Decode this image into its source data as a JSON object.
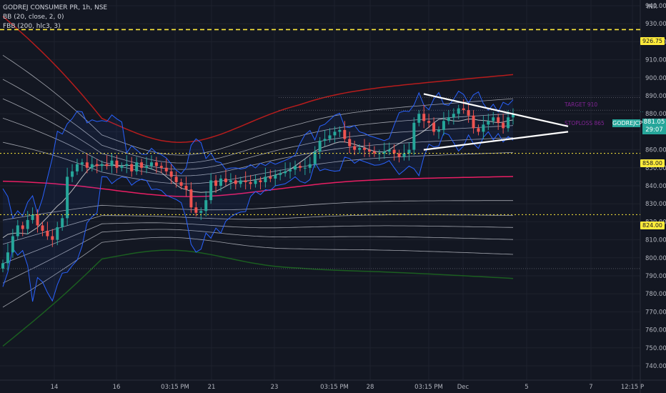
{
  "header": {
    "symbol_line": "GODREJ CONSUMER PR, 1h, NSE",
    "indicator_bb": "BB (20, close, 2, 0)",
    "indicator_fbb": "FBB (200, hlc3, 3)"
  },
  "axis": {
    "currency": "INR",
    "price_ticks": [
      "940.00",
      "930.00",
      "920.00",
      "910.00",
      "900.00",
      "890.00",
      "880.00",
      "870.00",
      "860.00",
      "850.00",
      "840.00",
      "830.00",
      "820.00",
      "810.00",
      "800.00",
      "790.00",
      "780.00",
      "770.00",
      "760.00",
      "750.00",
      "740.00"
    ],
    "time_ticks": [
      "14",
      "16",
      "03:15 PM",
      "21",
      "23",
      "03:15 PM",
      "28",
      "03:15 PM",
      "Dec",
      "5",
      "7",
      "12:15 P"
    ]
  },
  "levels": {
    "resistance_top": "926.75",
    "level_858": "858.00",
    "level_824": "824.00"
  },
  "current": {
    "symbol": "GODREJCP",
    "price": "881.05",
    "countdown": "29:07"
  },
  "annotations": {
    "target": "TARGET 910",
    "stoploss": "STOPLOSS 865"
  },
  "colors": {
    "background": "#131722",
    "up": "#26a69a",
    "down": "#ef5350",
    "dashed_level": "#ffeb3b",
    "bb": "#2962ff",
    "upper_band": "#b71c1c",
    "lower_band": "#1b5e20",
    "basis": "#e91e63"
  },
  "chart_data": {
    "type": "candlestick",
    "ylim": [
      740,
      945
    ],
    "close_series": [
      797,
      803,
      812,
      818,
      816,
      821,
      824,
      818,
      815,
      812,
      810,
      817,
      822,
      845,
      848,
      852,
      853,
      850,
      852,
      851,
      852,
      851,
      854,
      850,
      851,
      852,
      848,
      853,
      850,
      851,
      853,
      851,
      850,
      848,
      845,
      842,
      840,
      838,
      828,
      825,
      826,
      832,
      843,
      840,
      844,
      842,
      843,
      841,
      843,
      842,
      841,
      843,
      842,
      845,
      844,
      846,
      847,
      848,
      849,
      851,
      850,
      850,
      852,
      859,
      865,
      866,
      868,
      870,
      871,
      866,
      862,
      860,
      861,
      860,
      859,
      858,
      858,
      859,
      860,
      858,
      856,
      858,
      860,
      875,
      880,
      876,
      875,
      870,
      871,
      876,
      878,
      880,
      883,
      882,
      879,
      872,
      870,
      874,
      876,
      878,
      875,
      872,
      878,
      880
    ]
  }
}
